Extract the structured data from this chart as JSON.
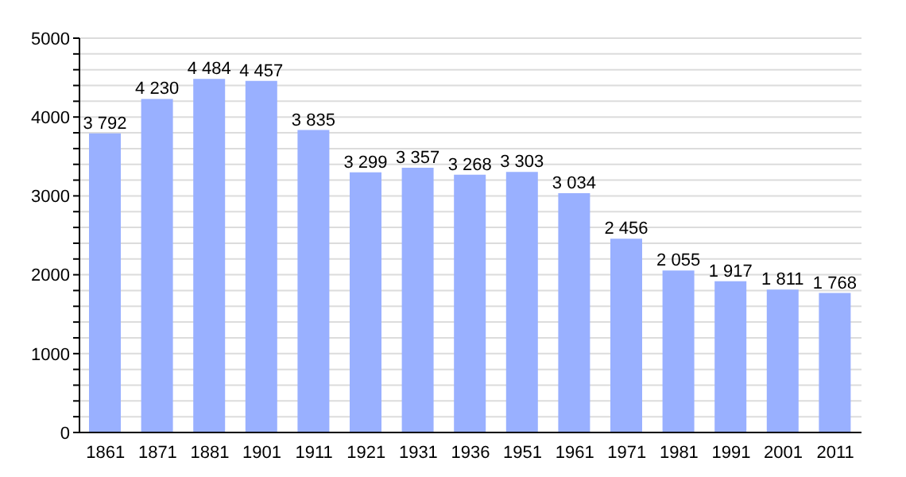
{
  "chart_data": {
    "type": "bar",
    "categories": [
      "1861",
      "1871",
      "1881",
      "1901",
      "1911",
      "1921",
      "1931",
      "1936",
      "1951",
      "1961",
      "1971",
      "1981",
      "1991",
      "2001",
      "2011"
    ],
    "values": [
      3792,
      4230,
      4484,
      4457,
      3835,
      3299,
      3357,
      3268,
      3303,
      3034,
      2456,
      2055,
      1917,
      1811,
      1768
    ],
    "value_labels": [
      "3 792",
      "4 230",
      "4 484",
      "4 457",
      "3 835",
      "3 299",
      "3 357",
      "3 268",
      "3 303",
      "3 034",
      "2 456",
      "2 055",
      "1 917",
      "1 811",
      "1 768"
    ],
    "color": "#99b0ff",
    "ylim": [
      0,
      5000
    ],
    "yticks": [
      0,
      {
        "value": 200,
        "label": null
      },
      {
        "value": 400,
        "label": null
      },
      {
        "value": 600,
        "label": null
      },
      {
        "value": 800,
        "label": null
      },
      1000,
      {
        "value": 1200,
        "label": null
      },
      {
        "value": 1400,
        "label": null
      },
      {
        "value": 1600,
        "label": null
      },
      {
        "value": 1800,
        "label": null
      },
      2000,
      {
        "value": 2200,
        "label": null
      },
      {
        "value": 2400,
        "label": null
      },
      {
        "value": 2600,
        "label": null
      },
      {
        "value": 2800,
        "label": null
      },
      3000,
      {
        "value": 3200,
        "label": null
      },
      {
        "value": 3400,
        "label": null
      },
      {
        "value": 3600,
        "label": null
      },
      {
        "value": 3800,
        "label": null
      },
      4000,
      {
        "value": 4200,
        "label": null
      },
      {
        "value": 4400,
        "label": null
      },
      {
        "value": 4600,
        "label": null
      },
      {
        "value": 4800,
        "label": null
      },
      5000
    ],
    "grid": "y"
  }
}
